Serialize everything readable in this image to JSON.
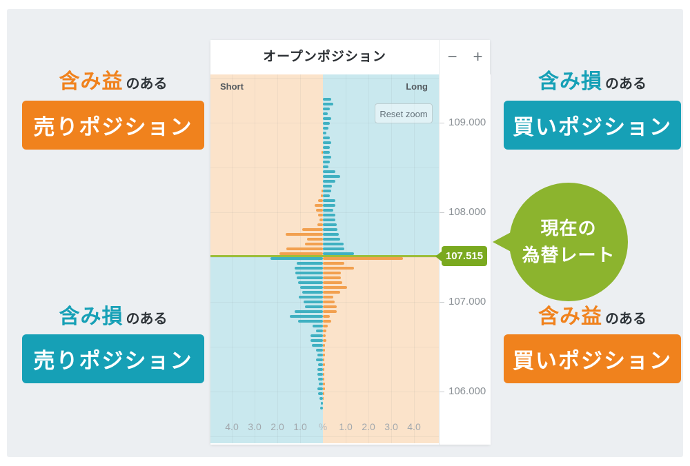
{
  "colors": {
    "accent_orange": "#F0821D",
    "accent_teal": "#16A0B6",
    "bar_orange": "#F2A04F",
    "bar_teal": "#3FB0C1",
    "quadrant_peach": "#FBE3CA",
    "quadrant_blue": "#C9E8EE",
    "rate_tag_green": "#7AA91F",
    "rate_line_green": "#9DBE3A",
    "bubble_green": "#8CB42E",
    "page_bg": "#ECEFF2"
  },
  "chart_panel": {
    "title": "オープンポジション",
    "zoom_out_label": "−",
    "zoom_in_label": "+",
    "reset_zoom_label": "Reset zoom",
    "short_label": "Short",
    "long_label": "Long",
    "current_rate_label": "107.515",
    "y_axis_labels": [
      "109.000",
      "108.000",
      "107.000",
      "106.000"
    ]
  },
  "callout": {
    "line1": "現在の",
    "line2": "為替レート"
  },
  "annotations": {
    "top_left": {
      "highlight": "含み益",
      "suffix": "のある",
      "button": "売りポジション"
    },
    "top_right": {
      "highlight": "含み損",
      "suffix": "のある",
      "button": "買いポジション"
    },
    "bottom_left": {
      "highlight": "含み損",
      "suffix": "のある",
      "button": "売りポジション"
    },
    "bottom_right": {
      "highlight": "含み益",
      "suffix": "のある",
      "button": "買いポジション"
    }
  },
  "chart_data": {
    "type": "bar",
    "subtype": "diverging-horizontal-histogram",
    "title": "オープンポジション",
    "side_labels": {
      "left": "Short",
      "right": "Long"
    },
    "x_unit": "%",
    "x_tick_labels": [
      "4.0",
      "3.0",
      "2.0",
      "1.0",
      "%",
      "1.0",
      "2.0",
      "3.0",
      "4.0"
    ],
    "x_tick_values": [
      -4,
      -3,
      -2,
      -1,
      0,
      1,
      2,
      3,
      4
    ],
    "x_max_pct": 5,
    "ylim": [
      105.423,
      109.538
    ],
    "y_ticks": [
      109.0,
      108.0,
      107.0,
      106.0
    ],
    "grid_step_price": 0.5,
    "current_rate": 107.515,
    "color_rule": "above current_rate: short=orange(unrealized profit), long=teal(unrealized loss); below current_rate: short=teal(loss), long=orange(profit)",
    "rows": {
      "price_start": 109.262,
      "price_step": -0.0538,
      "short_pct": [
        0,
        0,
        0,
        0,
        0,
        0,
        0,
        0,
        0,
        0,
        0,
        0.05,
        0,
        0,
        0,
        0,
        0,
        0,
        0,
        0.05,
        0.1,
        0.2,
        0.35,
        0.3,
        0.2,
        0.15,
        0.25,
        0.9,
        1.65,
        0.7,
        0.8,
        1.6,
        1.9,
        2.3,
        1.15,
        1.25,
        1.2,
        1.15,
        1.1,
        1.0,
        0.9,
        1.05,
        0.85,
        0.8,
        1.25,
        1.45,
        1.1,
        0.45,
        0.3,
        0.55,
        0.55,
        0.5,
        0.3,
        0.25,
        0.3,
        0.2,
        0.25,
        0.25,
        0.2,
        0.18,
        0.25,
        0.2,
        0.15,
        0.1,
        0.12
      ],
      "long_pct": [
        0.35,
        0.45,
        0.3,
        0.2,
        0.35,
        0.3,
        0.25,
        0.15,
        0.3,
        0.35,
        0.3,
        0.3,
        0.35,
        0.3,
        0.25,
        0.55,
        0.75,
        0.55,
        0.4,
        0.35,
        0.3,
        0.55,
        0.55,
        0.45,
        0.55,
        0.55,
        0.6,
        0.65,
        0.7,
        0.76,
        0.9,
        0.95,
        1.35,
        3.5,
        0.95,
        1.35,
        0.8,
        0.8,
        0.85,
        1.05,
        0.75,
        0.45,
        0.5,
        0.6,
        0.6,
        0.3,
        0.35,
        0.2,
        0.15,
        0.12,
        0.15,
        0.1,
        0.1,
        0.08,
        0.05,
        0.1,
        0.05,
        0.05,
        0.05,
        0.1,
        0.08,
        0.05,
        0.03,
        0,
        0
      ]
    }
  }
}
